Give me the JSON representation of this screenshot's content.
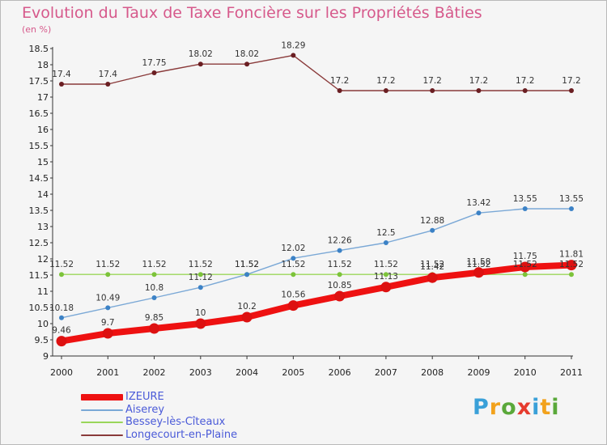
{
  "title": "Evolution du Taux de Taxe Foncière sur les Propriétés Bâties",
  "unit_label": "(en %)",
  "logo": {
    "letters": [
      "P",
      "r",
      "o",
      "x",
      "i",
      "t",
      "i"
    ],
    "colors": [
      "#3aa0d8",
      "#f2a21c",
      "#5aa83a",
      "#e63b2e",
      "#3aa0d8",
      "#f2a21c",
      "#5aa83a"
    ]
  },
  "chart_data": {
    "type": "line",
    "x": [
      "2000",
      "2001",
      "2002",
      "2003",
      "2004",
      "2005",
      "2006",
      "2007",
      "2008",
      "2009",
      "2010",
      "2011"
    ],
    "ylim": [
      9,
      18.5
    ],
    "yticks": [
      "9",
      "9.5",
      "10",
      "10.5",
      "11",
      "11.5",
      "12",
      "12.5",
      "13",
      "13.5",
      "14",
      "14.5",
      "15",
      "15.5",
      "16",
      "16.5",
      "17",
      "17.5",
      "18",
      "18.5"
    ],
    "grid": false,
    "legend_position": "bottom-left",
    "series": [
      {
        "name": "IZEURE",
        "color": "#ee1111",
        "marker": "#dd1111",
        "values": [
          9.46,
          9.7,
          9.85,
          10,
          10.2,
          10.56,
          10.85,
          11.13,
          11.42,
          11.58,
          11.75,
          11.81
        ],
        "labels": [
          "9.46",
          "9.7",
          "9.85",
          "10",
          "10.2",
          "10.56",
          "10.85",
          "11.13",
          "11.42",
          "11.58",
          "11.75",
          "11.81"
        ]
      },
      {
        "name": "Aiserey",
        "color": "#7aa8d6",
        "marker": "#3c82c6",
        "values": [
          10.18,
          10.49,
          10.8,
          11.12,
          11.52,
          12.02,
          12.26,
          12.5,
          12.88,
          13.42,
          13.55,
          13.55
        ],
        "labels": [
          "10.18",
          "10.49",
          "10.8",
          "11.12",
          "11.52",
          "12.02",
          "12.26",
          "12.5",
          "12.88",
          "13.42",
          "13.55",
          "13.55"
        ]
      },
      {
        "name": "Bessey-lès-Cîteaux",
        "color": "#9ad65a",
        "marker": "#7cc33a",
        "values": [
          11.52,
          11.52,
          11.52,
          11.52,
          11.52,
          11.52,
          11.52,
          11.52,
          11.52,
          11.52,
          11.52,
          11.52
        ],
        "labels": [
          "11.52",
          "11.52",
          "11.52",
          "11.52",
          "11.52",
          "11.52",
          "11.52",
          "11.52",
          "11.52",
          "11.52",
          "11.52",
          "11.52"
        ]
      },
      {
        "name": "Longecourt-en-Plaine",
        "color": "#8a3a3a",
        "marker": "#6a1e22",
        "values": [
          17.4,
          17.4,
          17.75,
          18.02,
          18.02,
          18.29,
          17.2,
          17.2,
          17.2,
          17.2,
          17.2,
          17.2
        ],
        "labels": [
          "17.4",
          "17.4",
          "17.75",
          "18.02",
          "18.02",
          "18.29",
          "17.2",
          "17.2",
          "17.2",
          "17.2",
          "17.2",
          "17.2"
        ]
      }
    ]
  },
  "legend": {
    "items": [
      {
        "name": "IZEURE",
        "color": "#ee1111",
        "text_color": "#4a5ad8"
      },
      {
        "name": "Aiserey",
        "color": "#7aa8d6",
        "text_color": "#4a5ad8"
      },
      {
        "name": "Bessey-lès-Cîteaux",
        "color": "#9ad65a",
        "text_color": "#4a5ad8"
      },
      {
        "name": "Longecourt-en-Plaine",
        "color": "#8a3a3a",
        "text_color": "#4a5ad8"
      }
    ]
  }
}
